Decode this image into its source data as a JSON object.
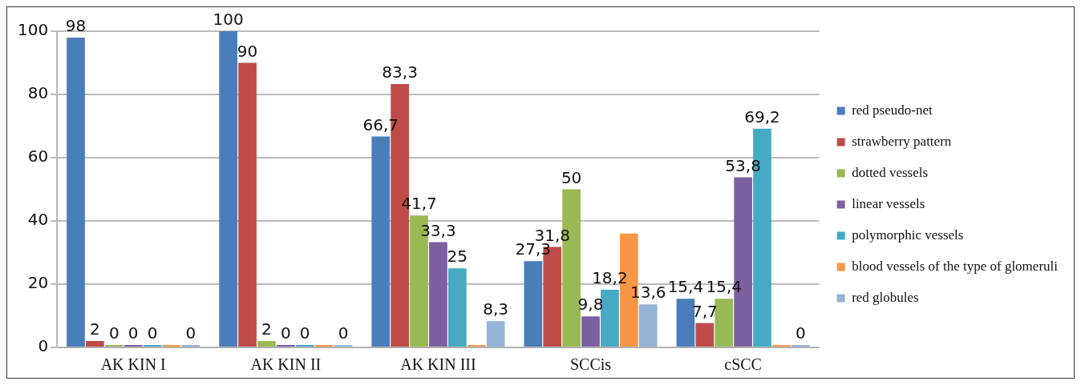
{
  "chart_data": {
    "type": "bar",
    "categories": [
      "AK KIN I",
      "AK KIN II",
      "AK KIN III",
      "SCCis",
      "cSCC"
    ],
    "ylim": [
      0,
      100
    ],
    "yticks": [
      0,
      20,
      40,
      60,
      80,
      100
    ],
    "grid": "y",
    "legend": "right",
    "series": [
      {
        "name": "red pseudo-net",
        "color": "#4a7ebb",
        "values": [
          98,
          100,
          66.7,
          27.3,
          15.4
        ],
        "value_labels": [
          "98",
          "100",
          "66,7",
          "27,3",
          "15,4"
        ]
      },
      {
        "name": "strawberry pattern",
        "color": "#be4b48",
        "values": [
          2,
          90,
          83.3,
          31.8,
          7.7
        ],
        "value_labels": [
          "2",
          "90",
          "83,3",
          "31,8",
          "7,7"
        ]
      },
      {
        "name": "dotted vessels",
        "color": "#98b954",
        "values": [
          0,
          2,
          41.7,
          50,
          15.4
        ],
        "value_labels": [
          "0",
          "2",
          "41,7",
          "50",
          "15,4"
        ]
      },
      {
        "name": "linear vessels",
        "color": "#7d60a0",
        "values": [
          0,
          0,
          33.3,
          9.8,
          53.8
        ],
        "value_labels": [
          "0",
          "0",
          "33,3",
          "9,8",
          "53,8"
        ]
      },
      {
        "name": "polymorphic vessels",
        "color": "#46aac5",
        "values": [
          0,
          0,
          25,
          18.2,
          69.2
        ],
        "value_labels": [
          "0",
          "0",
          "25",
          "18,2",
          "69,2"
        ]
      },
      {
        "name": "blood vessels of the type of glomeruli",
        "color": "#f79646",
        "values": [
          0,
          0,
          0,
          36,
          0
        ],
        "value_labels": [
          null,
          null,
          null,
          null,
          null
        ]
      },
      {
        "name": "red globules",
        "color": "#95b3d7",
        "values": [
          0,
          0,
          8.3,
          13.6,
          0
        ],
        "value_labels": [
          "0",
          "0",
          "8,3",
          "13,6",
          "0"
        ]
      }
    ]
  }
}
